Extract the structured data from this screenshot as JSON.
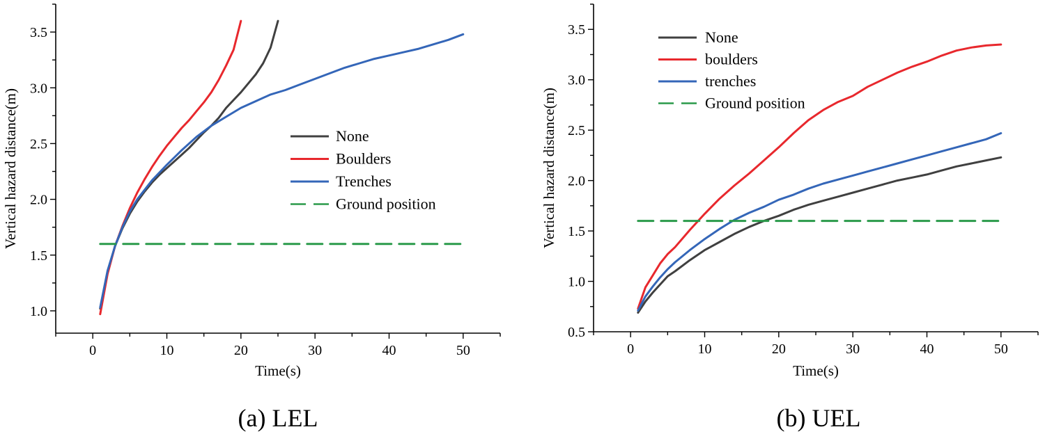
{
  "chart_data": [
    {
      "type": "line",
      "caption": "(a) LEL",
      "xlabel": "Time(s)",
      "ylabel": "Vertical hazard distance(m)",
      "xlim": [
        -5,
        55
      ],
      "ylim": [
        0.8,
        3.75
      ],
      "xticks": [
        0,
        10,
        20,
        30,
        40,
        50
      ],
      "yticks": [
        1.0,
        1.5,
        2.0,
        2.5,
        3.0,
        3.5
      ],
      "ytick_labels": [
        "1.0",
        "1.5",
        "2.0",
        "2.5",
        "3.0",
        "3.5"
      ],
      "xtick_labels": [
        "0",
        "10",
        "20",
        "30",
        "40",
        "50"
      ],
      "legend_position": "center-right",
      "series": [
        {
          "name": "None",
          "color": "#404040",
          "dashed": false,
          "x": [
            1,
            2,
            3,
            4,
            5,
            6,
            7,
            8,
            9,
            10,
            11,
            12,
            13,
            14,
            15,
            16,
            17,
            18,
            19,
            20,
            21,
            22,
            23,
            24,
            25
          ],
          "y": [
            1.02,
            1.35,
            1.58,
            1.74,
            1.87,
            1.98,
            2.07,
            2.15,
            2.22,
            2.28,
            2.34,
            2.4,
            2.46,
            2.53,
            2.6,
            2.66,
            2.73,
            2.82,
            2.89,
            2.96,
            3.04,
            3.12,
            3.22,
            3.36,
            3.6
          ]
        },
        {
          "name": "Boulders",
          "color": "#e8282d",
          "dashed": false,
          "x": [
            1,
            2,
            3,
            4,
            5,
            6,
            7,
            8,
            9,
            10,
            11,
            12,
            13,
            14,
            15,
            16,
            17,
            18,
            19,
            20
          ],
          "y": [
            0.97,
            1.33,
            1.58,
            1.76,
            1.92,
            2.06,
            2.18,
            2.29,
            2.39,
            2.48,
            2.56,
            2.64,
            2.71,
            2.79,
            2.87,
            2.96,
            3.07,
            3.2,
            3.34,
            3.6
          ]
        },
        {
          "name": "Trenches",
          "color": "#3466b8",
          "dashed": false,
          "x": [
            1,
            2,
            3,
            4,
            5,
            6,
            8,
            10,
            12,
            14,
            16,
            18,
            20,
            22,
            24,
            26,
            28,
            30,
            32,
            34,
            36,
            38,
            40,
            42,
            44,
            46,
            48,
            50
          ],
          "y": [
            1.03,
            1.36,
            1.58,
            1.75,
            1.89,
            2.0,
            2.17,
            2.31,
            2.44,
            2.56,
            2.66,
            2.74,
            2.82,
            2.88,
            2.94,
            2.98,
            3.03,
            3.08,
            3.13,
            3.18,
            3.22,
            3.26,
            3.29,
            3.32,
            3.35,
            3.39,
            3.43,
            3.48
          ]
        },
        {
          "name": "Ground position",
          "color": "#2a9a4a",
          "dashed": true,
          "x": [
            1,
            50
          ],
          "y": [
            1.6,
            1.6
          ]
        }
      ]
    },
    {
      "type": "line",
      "caption": "(b) UEL",
      "xlabel": "Time(s)",
      "ylabel": "Vertical hazard distance(m)",
      "xlim": [
        -5,
        55
      ],
      "ylim": [
        0.5,
        3.75
      ],
      "xticks": [
        0,
        10,
        20,
        30,
        40,
        50
      ],
      "yticks": [
        0.5,
        1.0,
        1.5,
        2.0,
        2.5,
        3.0,
        3.5
      ],
      "ytick_labels": [
        "0.5",
        "1.0",
        "1.5",
        "2.0",
        "2.5",
        "3.0",
        "3.5"
      ],
      "xtick_labels": [
        "0",
        "10",
        "20",
        "30",
        "40",
        "50"
      ],
      "legend_position": "top-left",
      "series": [
        {
          "name": "None",
          "color": "#404040",
          "dashed": false,
          "x": [
            1,
            2,
            3,
            4,
            5,
            6,
            8,
            10,
            12,
            14,
            16,
            18,
            20,
            22,
            24,
            26,
            28,
            30,
            32,
            34,
            36,
            38,
            40,
            42,
            44,
            46,
            48,
            50
          ],
          "y": [
            0.69,
            0.8,
            0.89,
            0.97,
            1.05,
            1.1,
            1.21,
            1.31,
            1.39,
            1.47,
            1.54,
            1.6,
            1.65,
            1.71,
            1.76,
            1.8,
            1.84,
            1.88,
            1.92,
            1.96,
            2.0,
            2.03,
            2.06,
            2.1,
            2.14,
            2.17,
            2.2,
            2.23
          ]
        },
        {
          "name": "boulders",
          "color": "#e8282d",
          "dashed": false,
          "x": [
            1,
            2,
            3,
            4,
            5,
            6,
            8,
            10,
            12,
            14,
            16,
            18,
            20,
            22,
            24,
            26,
            28,
            30,
            32,
            34,
            36,
            38,
            40,
            42,
            44,
            46,
            48,
            50
          ],
          "y": [
            0.73,
            0.94,
            1.06,
            1.18,
            1.27,
            1.34,
            1.51,
            1.67,
            1.82,
            1.95,
            2.07,
            2.2,
            2.33,
            2.47,
            2.6,
            2.7,
            2.78,
            2.84,
            2.93,
            3.0,
            3.07,
            3.13,
            3.18,
            3.24,
            3.29,
            3.32,
            3.34,
            3.35
          ]
        },
        {
          "name": "trenches",
          "color": "#3466b8",
          "dashed": false,
          "x": [
            1,
            2,
            3,
            4,
            5,
            6,
            8,
            10,
            12,
            14,
            16,
            18,
            20,
            22,
            24,
            26,
            28,
            30,
            32,
            34,
            36,
            38,
            40,
            42,
            44,
            46,
            48,
            50
          ],
          "y": [
            0.71,
            0.85,
            0.95,
            1.04,
            1.12,
            1.19,
            1.31,
            1.42,
            1.52,
            1.61,
            1.68,
            1.74,
            1.81,
            1.86,
            1.92,
            1.97,
            2.01,
            2.05,
            2.09,
            2.13,
            2.17,
            2.21,
            2.25,
            2.29,
            2.33,
            2.37,
            2.41,
            2.47
          ]
        },
        {
          "name": "Ground position",
          "color": "#2a9a4a",
          "dashed": true,
          "x": [
            1,
            50
          ],
          "y": [
            1.6,
            1.6
          ]
        }
      ]
    }
  ]
}
